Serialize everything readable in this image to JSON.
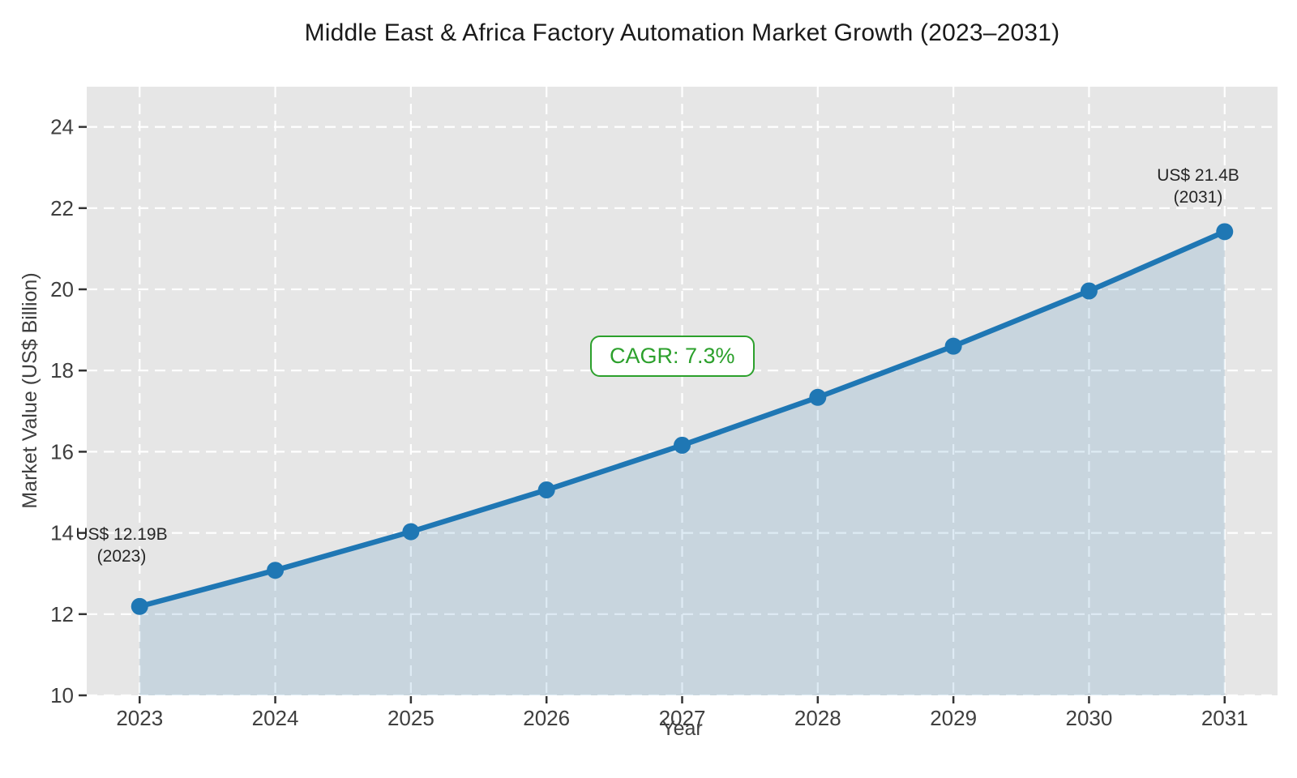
{
  "chart_data": {
    "type": "line",
    "title": "Middle East & Africa Factory Automation Market Growth (2023–2031)",
    "xlabel": "Year",
    "ylabel": "Market Value (US$ Billion)",
    "x": [
      2023,
      2024,
      2025,
      2026,
      2027,
      2028,
      2029,
      2030,
      2031
    ],
    "series": [
      {
        "name": "Market Value (US$ Billion)",
        "values": [
          12.19,
          13.08,
          14.03,
          15.06,
          16.16,
          17.34,
          18.6,
          19.96,
          21.42
        ]
      }
    ],
    "xticks": [
      2023,
      2024,
      2025,
      2026,
      2027,
      2028,
      2029,
      2030,
      2031
    ],
    "yticks": [
      10,
      12,
      14,
      16,
      18,
      20,
      22,
      24
    ],
    "xlim": [
      2022.61,
      2031.39
    ],
    "ylim": [
      10,
      24.99
    ],
    "grid": {
      "on": true,
      "color": "#ffffff",
      "style": "dashed"
    },
    "legend": "none",
    "style": {
      "line_color": "#1f77b4",
      "marker": "circle",
      "marker_color": "#1f77b4",
      "area_fill_color": "#1f77b4",
      "area_fill_alpha": 0.15,
      "plot_background": "#e6e6e6",
      "figure_background": "#ffffff",
      "tick_color": "#333333",
      "tick_label_color": "#3f3f3f"
    },
    "annotations": [
      {
        "name": "start-value",
        "lines": [
          "US$ 12.19B",
          "(2023)"
        ],
        "x": 2023,
        "y": 12.19
      },
      {
        "name": "end-value",
        "lines": [
          "US$ 21.4B",
          "(2031)"
        ],
        "x": 2031,
        "y": 21.42
      },
      {
        "name": "cagr-badge",
        "text": "CAGR: 7.3%",
        "color": "#2ca02c"
      }
    ]
  }
}
